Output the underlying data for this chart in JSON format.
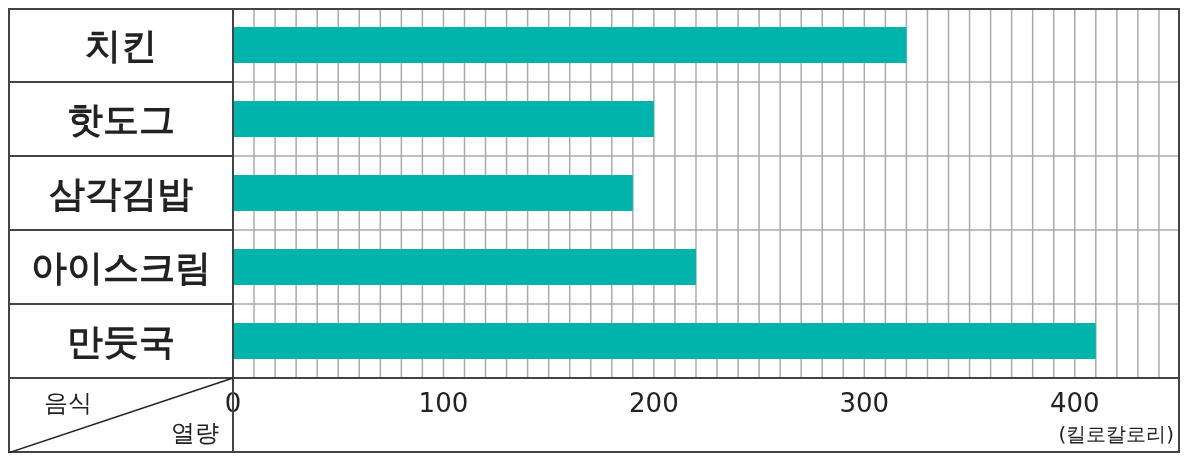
{
  "chart_data": {
    "type": "bar",
    "orientation": "horizontal",
    "ylabel": "음식",
    "xlabel": "열량",
    "annotations": [
      "(킬로칼로리)"
    ],
    "categories": [
      "치킨",
      "핫도그",
      "삼각김밥",
      "아이스크림",
      "만둣국"
    ],
    "values": [
      320,
      200,
      190,
      220,
      410
    ],
    "color": "#00b4ab",
    "xlim": [
      0,
      450
    ],
    "xticks": [
      0,
      {
        "value": 10,
        "label": null
      },
      {
        "value": 20,
        "label": null
      },
      {
        "value": 30,
        "label": null
      },
      {
        "value": 40,
        "label": null
      },
      {
        "value": 50,
        "label": null
      },
      {
        "value": 60,
        "label": null
      },
      {
        "value": 70,
        "label": null
      },
      {
        "value": 80,
        "label": null
      },
      {
        "value": 90,
        "label": null
      },
      100,
      {
        "value": 110,
        "label": null
      },
      {
        "value": 120,
        "label": null
      },
      {
        "value": 130,
        "label": null
      },
      {
        "value": 140,
        "label": null
      },
      {
        "value": 150,
        "label": null
      },
      {
        "value": 160,
        "label": null
      },
      {
        "value": 170,
        "label": null
      },
      {
        "value": 180,
        "label": null
      },
      {
        "value": 190,
        "label": null
      },
      200,
      {
        "value": 210,
        "label": null
      },
      {
        "value": 220,
        "label": null
      },
      {
        "value": 230,
        "label": null
      },
      {
        "value": 240,
        "label": null
      },
      {
        "value": 250,
        "label": null
      },
      {
        "value": 260,
        "label": null
      },
      {
        "value": 270,
        "label": null
      },
      {
        "value": 280,
        "label": null
      },
      {
        "value": 290,
        "label": null
      },
      300,
      {
        "value": 310,
        "label": null
      },
      {
        "value": 320,
        "label": null
      },
      {
        "value": 330,
        "label": null
      },
      {
        "value": 340,
        "label": null
      },
      {
        "value": 350,
        "label": null
      },
      {
        "value": 360,
        "label": null
      },
      {
        "value": 370,
        "label": null
      },
      {
        "value": 380,
        "label": null
      },
      {
        "value": 390,
        "label": null
      },
      400,
      {
        "value": 410,
        "label": null
      },
      {
        "value": 420,
        "label": null
      },
      {
        "value": 430,
        "label": null
      },
      {
        "value": 440,
        "label": null
      },
      {
        "value": 450,
        "label": null
      }
    ],
    "grid": true,
    "legend": false
  }
}
